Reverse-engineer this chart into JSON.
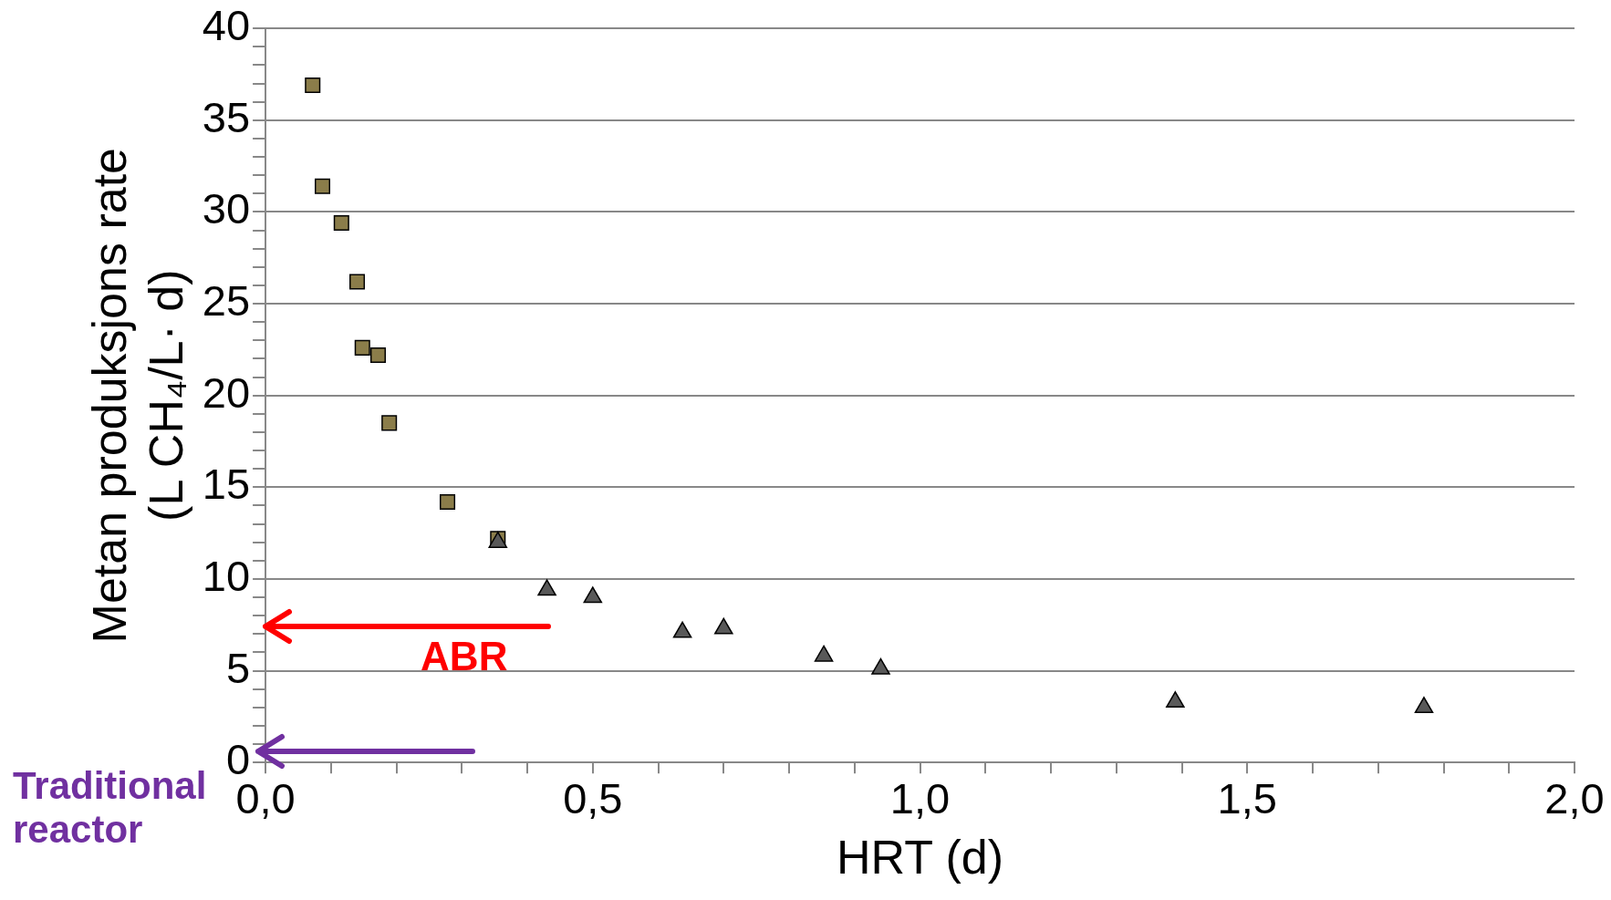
{
  "chart_data": {
    "type": "scatter",
    "xlabel": "HRT (d)",
    "ylabel": "Metan produksjons rate\n(L CH₄/L· d)",
    "xlim": [
      0,
      2
    ],
    "xticks": [
      {
        "value": 0,
        "label": "0,0"
      },
      {
        "value": 0.1,
        "label": null
      },
      {
        "value": 0.2,
        "label": null
      },
      {
        "value": 0.3,
        "label": null
      },
      {
        "value": 0.4,
        "label": null
      },
      {
        "value": 0.5,
        "label": "0,5"
      },
      {
        "value": 0.6,
        "label": null
      },
      {
        "value": 0.7,
        "label": null
      },
      {
        "value": 0.8,
        "label": null
      },
      {
        "value": 0.9,
        "label": null
      },
      {
        "value": 1,
        "label": "1,0"
      },
      {
        "value": 1.1,
        "label": null
      },
      {
        "value": 1.2,
        "label": null
      },
      {
        "value": 1.3,
        "label": null
      },
      {
        "value": 1.4,
        "label": null
      },
      {
        "value": 1.5,
        "label": "1,5"
      },
      {
        "value": 1.6,
        "label": null
      },
      {
        "value": 1.7,
        "label": null
      },
      {
        "value": 1.8,
        "label": null
      },
      {
        "value": 1.9,
        "label": null
      },
      {
        "value": 2,
        "label": "2,0"
      }
    ],
    "ylim": [
      0,
      40
    ],
    "yticks": [
      0,
      {
        "value": 1,
        "label": null
      },
      {
        "value": 2,
        "label": null
      },
      {
        "value": 3,
        "label": null
      },
      {
        "value": 4,
        "label": null
      },
      5,
      {
        "value": 6,
        "label": null
      },
      {
        "value": 7,
        "label": null
      },
      {
        "value": 8,
        "label": null
      },
      {
        "value": 9,
        "label": null
      },
      10,
      {
        "value": 11,
        "label": null
      },
      {
        "value": 12,
        "label": null
      },
      {
        "value": 13,
        "label": null
      },
      {
        "value": 14,
        "label": null
      },
      15,
      {
        "value": 16,
        "label": null
      },
      {
        "value": 17,
        "label": null
      },
      {
        "value": 18,
        "label": null
      },
      {
        "value": 19,
        "label": null
      },
      20,
      {
        "value": 21,
        "label": null
      },
      {
        "value": 22,
        "label": null
      },
      {
        "value": 23,
        "label": null
      },
      {
        "value": 24,
        "label": null
      },
      25,
      {
        "value": 26,
        "label": null
      },
      {
        "value": 27,
        "label": null
      },
      {
        "value": 28,
        "label": null
      },
      {
        "value": 29,
        "label": null
      },
      30,
      {
        "value": 31,
        "label": null
      },
      {
        "value": 32,
        "label": null
      },
      {
        "value": 33,
        "label": null
      },
      {
        "value": 34,
        "label": null
      },
      35,
      {
        "value": 36,
        "label": null
      },
      {
        "value": 37,
        "label": null
      },
      {
        "value": 38,
        "label": null
      },
      {
        "value": 39,
        "label": null
      },
      40
    ],
    "grid": "y",
    "legend": false,
    "series": [
      {
        "color": "#8b7d4a",
        "marker": "square",
        "x": [
          0.072,
          0.087,
          0.116,
          0.14,
          0.148,
          0.172,
          0.189,
          0.278,
          0.355
        ],
        "values": [
          36.9,
          31.4,
          29.4,
          26.2,
          22.6,
          22.2,
          18.5,
          14.2,
          12.2
        ]
      },
      {
        "color": "#595959",
        "marker": "triangle",
        "x": [
          0.355,
          0.43,
          0.5,
          0.637,
          0.7,
          0.853,
          0.94,
          1.39,
          1.77
        ],
        "values": [
          12.0,
          9.4,
          9.0,
          7.1,
          7.3,
          5.8,
          5.1,
          3.3,
          3.0
        ]
      }
    ],
    "annotations": [
      "ABR",
      "Traditional reactor"
    ]
  }
}
